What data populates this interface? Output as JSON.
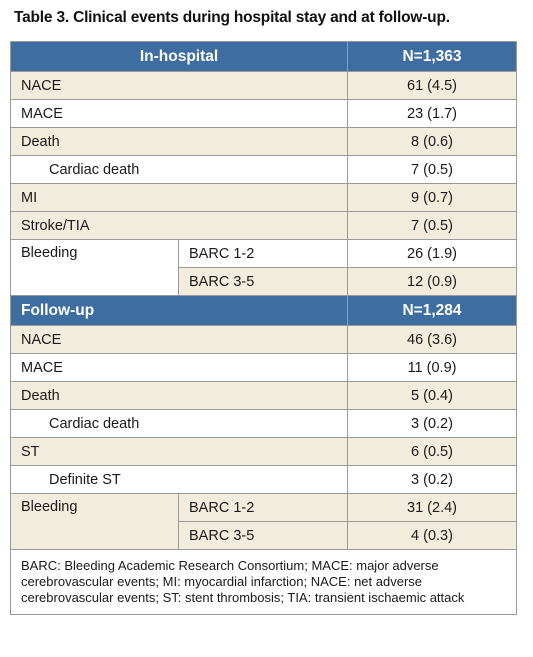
{
  "title": "Table 3. Clinical events during hospital stay and at follow-up.",
  "in_hospital": {
    "header": "In-hospital",
    "n": "N=1,363",
    "rows": [
      {
        "label": "NACE",
        "value": "61 (4.5)"
      },
      {
        "label": "MACE",
        "value": "23 (1.7)"
      },
      {
        "label": "Death",
        "value": "8 (0.6)"
      },
      {
        "label": "Cardiac death",
        "value": "7 (0.5)"
      },
      {
        "label": "MI",
        "value": "9 (0.7)"
      },
      {
        "label": "Stroke/TIA",
        "value": "7 (0.5)"
      }
    ],
    "bleeding": {
      "label": "Bleeding",
      "sub": [
        {
          "label": "BARC 1-2",
          "value": "26 (1.9)"
        },
        {
          "label": "BARC 3-5",
          "value": "12 (0.9)"
        }
      ]
    }
  },
  "follow_up": {
    "header": "Follow-up",
    "n": "N=1,284",
    "rows": [
      {
        "label": "NACE",
        "value": "46 (3.6)"
      },
      {
        "label": "MACE",
        "value": "11 (0.9)"
      },
      {
        "label": "Death",
        "value": "5 (0.4)"
      },
      {
        "label": "Cardiac death",
        "value": "3 (0.2)"
      },
      {
        "label": "ST",
        "value": "6 (0.5)"
      },
      {
        "label": "Definite ST",
        "value": "3 (0.2)"
      }
    ],
    "bleeding": {
      "label": "Bleeding",
      "sub": [
        {
          "label": "BARC 1-2",
          "value": "31 (2.4)"
        },
        {
          "label": "BARC 3-5",
          "value": "4 (0.3)"
        }
      ]
    }
  },
  "footnote": "BARC: Bleeding Academic Research Consortium; MACE: major adverse cerebrovascular events; MI: myocardial infarction; NACE: net adverse cerebrovascular events; ST: stent thrombosis; TIA: transient ischaemic attack",
  "colors": {
    "header_bg": "#3d6da1",
    "shaded_row": "#f2ecdc",
    "plain_row": "#ffffff"
  }
}
